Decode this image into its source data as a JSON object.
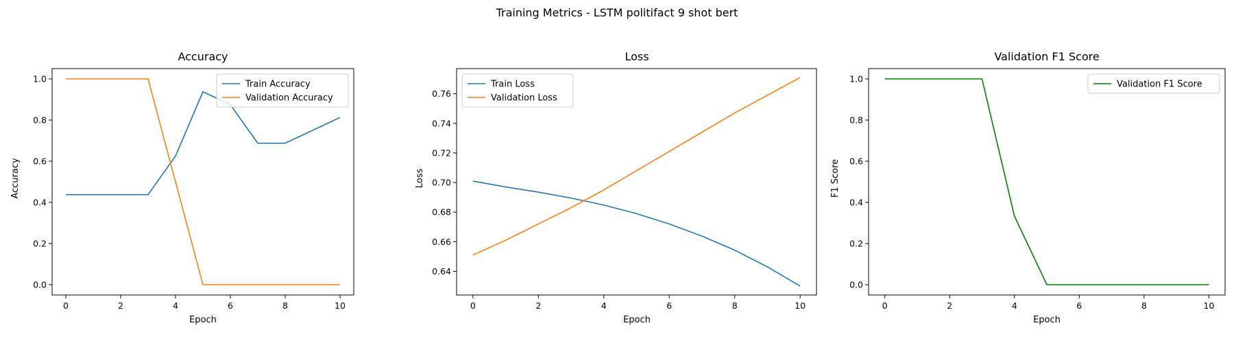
{
  "figure": {
    "title": "Training Metrics - LSTM politifact 9 shot bert"
  },
  "chart_data": [
    {
      "type": "line",
      "title": "Accuracy",
      "xlabel": "Epoch",
      "ylabel": "Accuracy",
      "xlim": [
        -0.5,
        10.5
      ],
      "ylim": [
        -0.05,
        1.05
      ],
      "xticks": [
        0,
        2,
        4,
        6,
        8,
        10
      ],
      "yticks": [
        0.0,
        0.2,
        0.4,
        0.6,
        0.8,
        1.0
      ],
      "ytick_decimals": 1,
      "legend": "top-right",
      "grid": false,
      "x": [
        0,
        1,
        2,
        3,
        4,
        5,
        6,
        7,
        8,
        9,
        10
      ],
      "series": [
        {
          "name": "Train Accuracy",
          "color": "#1f77b4",
          "values": [
            0.4375,
            0.4375,
            0.4375,
            0.4375,
            0.625,
            0.9375,
            0.875,
            0.6875,
            0.6875,
            0.75,
            0.8125
          ]
        },
        {
          "name": "Validation Accuracy",
          "color": "#ff7f0e",
          "values": [
            1.0,
            1.0,
            1.0,
            1.0,
            0.5,
            0.0,
            0.0,
            0.0,
            0.0,
            0.0,
            0.0
          ]
        }
      ]
    },
    {
      "type": "line",
      "title": "Loss",
      "xlabel": "Epoch",
      "ylabel": "Loss",
      "xlim": [
        -0.5,
        10.5
      ],
      "ylim": [
        0.624,
        0.777
      ],
      "xticks": [
        0,
        2,
        4,
        6,
        8,
        10
      ],
      "yticks": [
        0.64,
        0.66,
        0.68,
        0.7,
        0.72,
        0.74,
        0.76
      ],
      "ytick_decimals": 2,
      "legend": "top-left",
      "grid": false,
      "x": [
        0,
        1,
        2,
        3,
        4,
        5,
        6,
        7,
        8,
        9,
        10
      ],
      "series": [
        {
          "name": "Train Loss",
          "color": "#1f77b4",
          "values": [
            0.701,
            0.697,
            0.6935,
            0.6895,
            0.6848,
            0.679,
            0.672,
            0.6638,
            0.6543,
            0.643,
            0.63
          ]
        },
        {
          "name": "Validation Loss",
          "color": "#ff7f0e",
          "values": [
            0.651,
            0.661,
            0.672,
            0.683,
            0.695,
            0.708,
            0.721,
            0.734,
            0.747,
            0.759,
            0.771
          ]
        }
      ]
    },
    {
      "type": "line",
      "title": "Validation F1 Score",
      "xlabel": "Epoch",
      "ylabel": "F1 Score",
      "xlim": [
        -0.5,
        10.5
      ],
      "ylim": [
        -0.05,
        1.05
      ],
      "xticks": [
        0,
        2,
        4,
        6,
        8,
        10
      ],
      "yticks": [
        0.0,
        0.2,
        0.4,
        0.6,
        0.8,
        1.0
      ],
      "ytick_decimals": 1,
      "legend": "top-right",
      "grid": false,
      "x": [
        0,
        1,
        2,
        3,
        4,
        5,
        6,
        7,
        8,
        9,
        10
      ],
      "series": [
        {
          "name": "Validation F1 Score",
          "color": "#008000",
          "values": [
            1.0,
            1.0,
            1.0,
            1.0,
            0.3333,
            0.0,
            0.0,
            0.0,
            0.0,
            0.0,
            0.0
          ]
        }
      ]
    }
  ]
}
